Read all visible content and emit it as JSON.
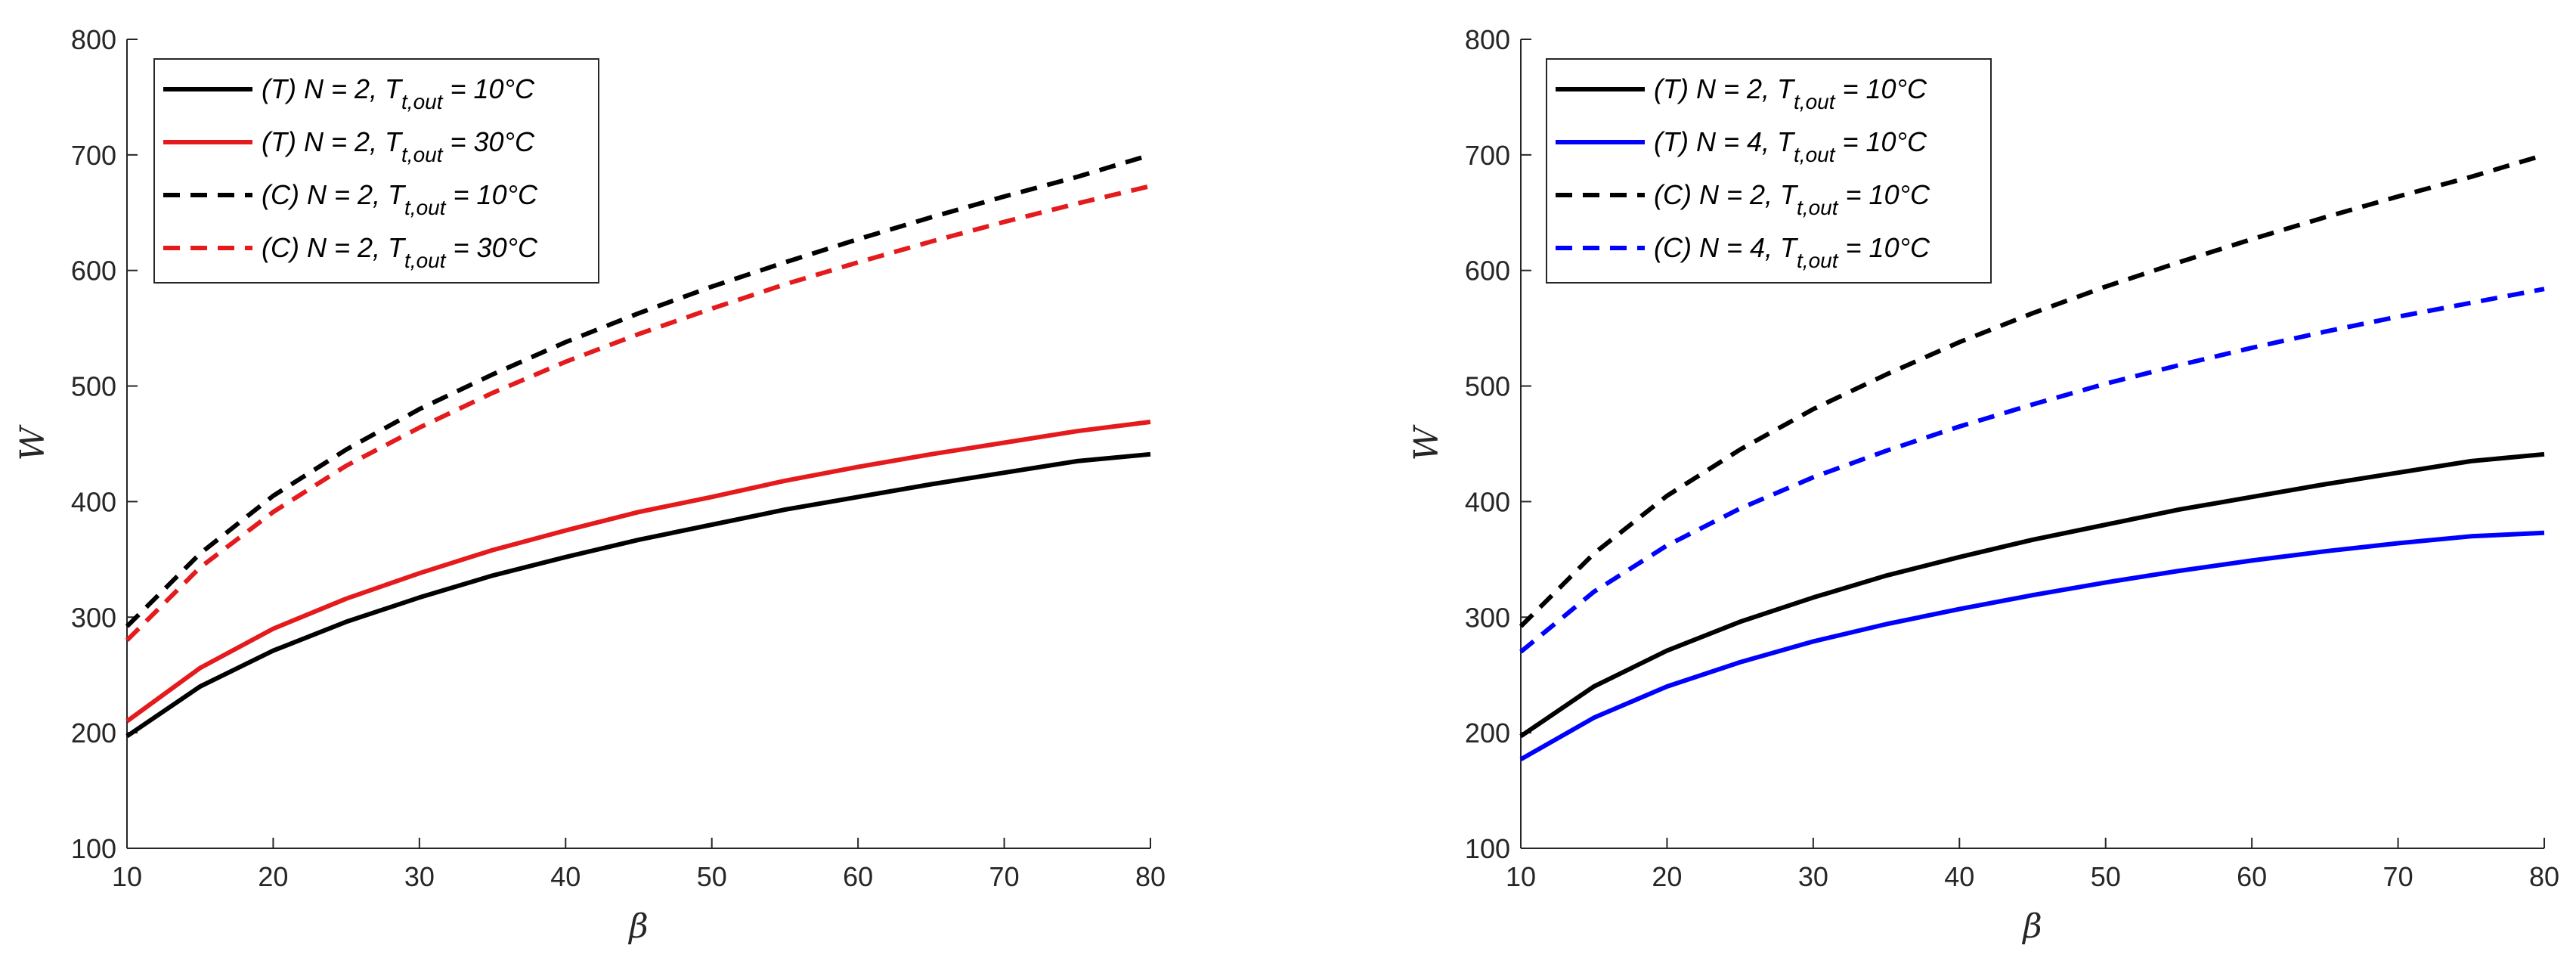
{
  "chart_data": [
    {
      "type": "line",
      "title": "",
      "xlabel": "β",
      "ylabel": "W",
      "xlim": [
        10,
        80
      ],
      "ylim": [
        100,
        800
      ],
      "xticks": [
        10,
        20,
        30,
        40,
        50,
        60,
        70,
        80
      ],
      "yticks": [
        100,
        200,
        300,
        400,
        500,
        600,
        700,
        800
      ],
      "grid": false,
      "legend_position": "top-left",
      "series": [
        {
          "name": "(T) N = 2, T_t,out = 10°C",
          "legend_pre": "(T) N = 2, T",
          "legend_sub": "t,out",
          "legend_post": " = 10°C",
          "color": "#000000",
          "dash": "solid",
          "x": [
            10,
            15,
            20,
            25,
            30,
            35,
            40,
            45,
            50,
            55,
            60,
            65,
            70,
            75,
            80
          ],
          "y": [
            197,
            240,
            271,
            296,
            317,
            336,
            352,
            367,
            380,
            393,
            404,
            415,
            425,
            435,
            441
          ]
        },
        {
          "name": "(T) N = 2, T_t,out = 30°C",
          "legend_pre": "(T) N = 2, T",
          "legend_sub": "t,out",
          "legend_post": " = 30°C",
          "color": "#e41a1c",
          "dash": "solid",
          "x": [
            10,
            15,
            20,
            25,
            30,
            35,
            40,
            45,
            50,
            55,
            60,
            65,
            70,
            75,
            80
          ],
          "y": [
            210,
            256,
            290,
            316,
            338,
            358,
            375,
            391,
            404,
            418,
            430,
            441,
            451,
            461,
            469
          ]
        },
        {
          "name": "(C) N = 2, T_t,out = 10°C",
          "legend_pre": "(C) N = 2, T",
          "legend_sub": "t,out",
          "legend_post": " = 10°C",
          "color": "#000000",
          "dash": "dashed",
          "x": [
            10,
            15,
            20,
            25,
            30,
            35,
            40,
            45,
            50,
            55,
            60,
            65,
            70,
            75,
            80
          ],
          "y": [
            292,
            355,
            405,
            445,
            480,
            510,
            538,
            563,
            586,
            607,
            627,
            646,
            664,
            681,
            700
          ]
        },
        {
          "name": "(C) N = 2, T_t,out = 30°C",
          "legend_pre": "(C) N = 2, T",
          "legend_sub": "t,out",
          "legend_post": " = 30°C",
          "color": "#e41a1c",
          "dash": "dashed",
          "x": [
            10,
            15,
            20,
            25,
            30,
            35,
            40,
            45,
            50,
            55,
            60,
            65,
            70,
            75,
            80
          ],
          "y": [
            280,
            343,
            391,
            431,
            464,
            494,
            521,
            545,
            567,
            588,
            607,
            625,
            642,
            658,
            673
          ]
        }
      ]
    },
    {
      "type": "line",
      "title": "",
      "xlabel": "β",
      "ylabel": "W",
      "xlim": [
        10,
        80
      ],
      "ylim": [
        100,
        800
      ],
      "xticks": [
        10,
        20,
        30,
        40,
        50,
        60,
        70,
        80
      ],
      "yticks": [
        100,
        200,
        300,
        400,
        500,
        600,
        700,
        800
      ],
      "grid": false,
      "legend_position": "top-left",
      "series": [
        {
          "name": "(T) N = 2, T_t,out = 10°C",
          "legend_pre": "(T) N = 2, T",
          "legend_sub": "t,out",
          "legend_post": " = 10°C",
          "color": "#000000",
          "dash": "solid",
          "x": [
            10,
            15,
            20,
            25,
            30,
            35,
            40,
            45,
            50,
            55,
            60,
            65,
            70,
            75,
            80
          ],
          "y": [
            197,
            240,
            271,
            296,
            317,
            336,
            352,
            367,
            380,
            393,
            404,
            415,
            425,
            435,
            441
          ]
        },
        {
          "name": "(T) N = 4, T_t,out = 10°C",
          "legend_pre": "(T) N = 4, T",
          "legend_sub": "t,out",
          "legend_post": " = 10°C",
          "color": "#0000ff",
          "dash": "solid",
          "x": [
            10,
            15,
            20,
            25,
            30,
            35,
            40,
            45,
            50,
            55,
            60,
            65,
            70,
            75,
            80
          ],
          "y": [
            177,
            213,
            240,
            261,
            279,
            294,
            307,
            319,
            330,
            340,
            349,
            357,
            364,
            370,
            373
          ]
        },
        {
          "name": "(C) N = 2, T_t,out = 10°C",
          "legend_pre": "(C) N = 2, T",
          "legend_sub": "t,out",
          "legend_post": " = 10°C",
          "color": "#000000",
          "dash": "dashed",
          "x": [
            10,
            15,
            20,
            25,
            30,
            35,
            40,
            45,
            50,
            55,
            60,
            65,
            70,
            75,
            80
          ],
          "y": [
            292,
            355,
            405,
            445,
            480,
            510,
            538,
            563,
            586,
            607,
            627,
            646,
            664,
            681,
            700
          ]
        },
        {
          "name": "(C) N = 4, T_t,out = 10°C",
          "legend_pre": "(C) N = 4, T",
          "legend_sub": "t,out",
          "legend_post": " = 10°C",
          "color": "#0000ff",
          "dash": "dashed",
          "x": [
            10,
            15,
            20,
            25,
            30,
            35,
            40,
            45,
            50,
            55,
            60,
            65,
            70,
            75,
            80
          ],
          "y": [
            270,
            322,
            362,
            394,
            421,
            444,
            465,
            484,
            502,
            518,
            533,
            547,
            560,
            572,
            584
          ]
        }
      ]
    }
  ]
}
